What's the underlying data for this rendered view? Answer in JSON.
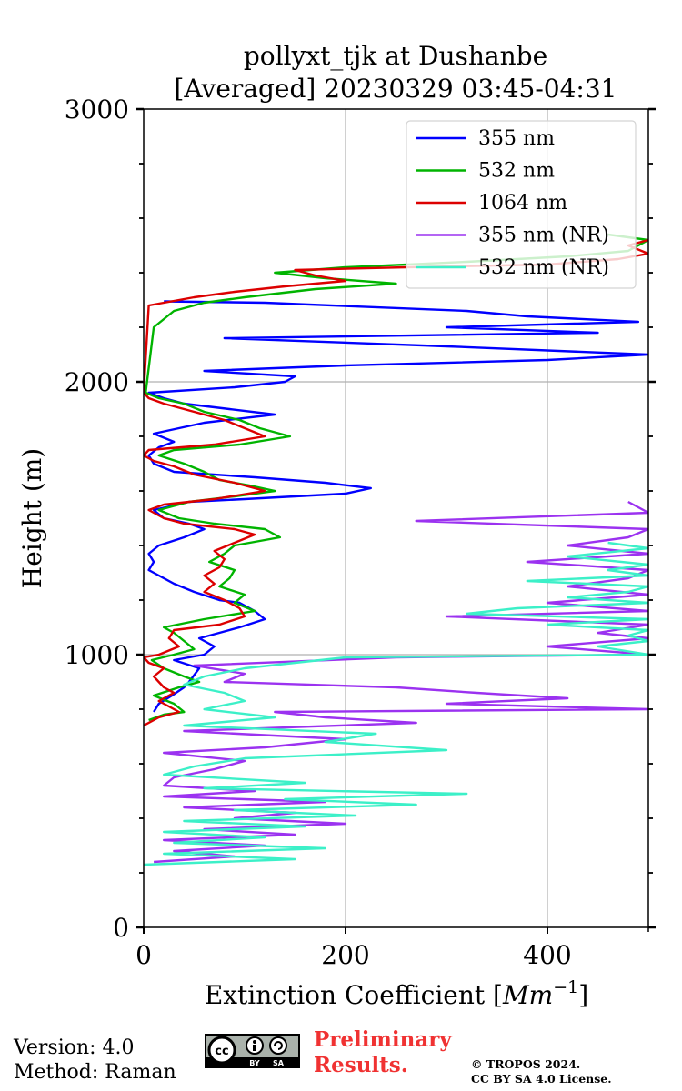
{
  "chart_data": {
    "type": "line",
    "title_line1": "pollyxt_tjk at Dushanbe",
    "title_line2": "[Averaged] 20230329 03:45-04:31",
    "xlabel": "Extinction Coefficient [",
    "xlabel_unit": "Mm",
    "xlabel_exp": "−1",
    "xlabel_close": "]",
    "ylabel": "Height (m)",
    "xlim": [
      0,
      500
    ],
    "ylim": [
      0,
      3000
    ],
    "x_ticks": [
      0,
      200,
      400
    ],
    "y_ticks": [
      0,
      1000,
      2000,
      3000
    ],
    "grid": true,
    "legend_position": "upper right",
    "series": [
      {
        "name": "355 nm",
        "color": "#0000ff",
        "points": [
          [
            10,
            790
          ],
          [
            15,
            820
          ],
          [
            28,
            850
          ],
          [
            40,
            880
          ],
          [
            45,
            900
          ],
          [
            55,
            950
          ],
          [
            30,
            980
          ],
          [
            60,
            1000
          ],
          [
            70,
            1030
          ],
          [
            55,
            1060
          ],
          [
            75,
            1080
          ],
          [
            95,
            1100
          ],
          [
            120,
            1130
          ],
          [
            110,
            1160
          ],
          [
            95,
            1190
          ],
          [
            75,
            1200
          ],
          [
            50,
            1230
          ],
          [
            30,
            1260
          ],
          [
            15,
            1290
          ],
          [
            5,
            1310
          ],
          [
            10,
            1340
          ],
          [
            5,
            1370
          ],
          [
            15,
            1400
          ],
          [
            40,
            1430
          ],
          [
            60,
            1460
          ],
          [
            45,
            1480
          ],
          [
            20,
            1500
          ],
          [
            10,
            1530
          ],
          [
            45,
            1560
          ],
          [
            100,
            1570
          ],
          [
            200,
            1590
          ],
          [
            225,
            1610
          ],
          [
            180,
            1630
          ],
          [
            110,
            1650
          ],
          [
            30,
            1670
          ],
          [
            10,
            1700
          ],
          [
            5,
            1730
          ],
          [
            15,
            1760
          ],
          [
            30,
            1780
          ],
          [
            10,
            1810
          ],
          [
            60,
            1850
          ],
          [
            130,
            1880
          ],
          [
            85,
            1900
          ],
          [
            40,
            1920
          ],
          [
            20,
            1940
          ],
          [
            5,
            1960
          ],
          [
            90,
            1980
          ],
          [
            140,
            2000
          ],
          [
            150,
            2020
          ],
          [
            60,
            2040
          ],
          [
            200,
            2060
          ],
          [
            400,
            2080
          ],
          [
            500,
            2100
          ],
          [
            300,
            2130
          ],
          [
            80,
            2160
          ],
          [
            450,
            2180
          ],
          [
            300,
            2200
          ],
          [
            490,
            2220
          ],
          [
            380,
            2240
          ],
          [
            320,
            2260
          ],
          [
            120,
            2290
          ],
          [
            20,
            2295
          ]
        ]
      },
      {
        "name": "532 nm",
        "color": "#00b400",
        "points": [
          [
            5,
            760
          ],
          [
            20,
            780
          ],
          [
            40,
            790
          ],
          [
            30,
            820
          ],
          [
            10,
            850
          ],
          [
            35,
            880
          ],
          [
            55,
            900
          ],
          [
            40,
            920
          ],
          [
            20,
            950
          ],
          [
            8,
            980
          ],
          [
            30,
            1000
          ],
          [
            50,
            1020
          ],
          [
            40,
            1050
          ],
          [
            30,
            1080
          ],
          [
            20,
            1100
          ],
          [
            60,
            1130
          ],
          [
            110,
            1160
          ],
          [
            90,
            1190
          ],
          [
            100,
            1220
          ],
          [
            75,
            1250
          ],
          [
            85,
            1280
          ],
          [
            90,
            1310
          ],
          [
            65,
            1340
          ],
          [
            80,
            1370
          ],
          [
            90,
            1400
          ],
          [
            135,
            1430
          ],
          [
            120,
            1460
          ],
          [
            70,
            1480
          ],
          [
            35,
            1500
          ],
          [
            15,
            1530
          ],
          [
            45,
            1560
          ],
          [
            90,
            1580
          ],
          [
            130,
            1600
          ],
          [
            105,
            1620
          ],
          [
            75,
            1640
          ],
          [
            60,
            1670
          ],
          [
            40,
            1700
          ],
          [
            15,
            1730
          ],
          [
            30,
            1750
          ],
          [
            95,
            1770
          ],
          [
            145,
            1800
          ],
          [
            115,
            1830
          ],
          [
            95,
            1860
          ],
          [
            60,
            1890
          ],
          [
            40,
            1920
          ],
          [
            15,
            1940
          ],
          [
            2,
            1960
          ],
          [
            10,
            2200
          ],
          [
            30,
            2260
          ],
          [
            60,
            2290
          ],
          [
            100,
            2310
          ],
          [
            170,
            2340
          ],
          [
            250,
            2360
          ],
          [
            180,
            2380
          ],
          [
            130,
            2400
          ],
          [
            200,
            2420
          ],
          [
            320,
            2440
          ],
          [
            420,
            2460
          ],
          [
            480,
            2480
          ],
          [
            500,
            2520
          ],
          [
            460,
            2540
          ]
        ]
      },
      {
        "name": "1064 nm",
        "color": "#dc0000",
        "points": [
          [
            0,
            740
          ],
          [
            15,
            770
          ],
          [
            35,
            790
          ],
          [
            25,
            810
          ],
          [
            15,
            830
          ],
          [
            30,
            860
          ],
          [
            20,
            880
          ],
          [
            10,
            920
          ],
          [
            20,
            950
          ],
          [
            5,
            970
          ],
          [
            0,
            990
          ],
          [
            15,
            1000
          ],
          [
            35,
            1030
          ],
          [
            25,
            1060
          ],
          [
            30,
            1090
          ],
          [
            75,
            1110
          ],
          [
            100,
            1140
          ],
          [
            95,
            1170
          ],
          [
            80,
            1200
          ],
          [
            60,
            1230
          ],
          [
            70,
            1260
          ],
          [
            60,
            1290
          ],
          [
            75,
            1320
          ],
          [
            80,
            1350
          ],
          [
            70,
            1380
          ],
          [
            90,
            1410
          ],
          [
            110,
            1440
          ],
          [
            90,
            1460
          ],
          [
            40,
            1480
          ],
          [
            20,
            1500
          ],
          [
            5,
            1530
          ],
          [
            20,
            1550
          ],
          [
            70,
            1570
          ],
          [
            120,
            1600
          ],
          [
            90,
            1630
          ],
          [
            50,
            1660
          ],
          [
            30,
            1690
          ],
          [
            10,
            1710
          ],
          [
            0,
            1730
          ],
          [
            5,
            1750
          ],
          [
            70,
            1770
          ],
          [
            120,
            1800
          ],
          [
            100,
            1830
          ],
          [
            80,
            1860
          ],
          [
            50,
            1890
          ],
          [
            20,
            1920
          ],
          [
            5,
            1940
          ],
          [
            0,
            1960
          ],
          [
            5,
            2280
          ],
          [
            20,
            2290
          ],
          [
            50,
            2310
          ],
          [
            90,
            2330
          ],
          [
            140,
            2350
          ],
          [
            200,
            2370
          ],
          [
            170,
            2390
          ],
          [
            150,
            2410
          ],
          [
            260,
            2420
          ],
          [
            400,
            2430
          ],
          [
            470,
            2450
          ],
          [
            500,
            2470
          ],
          [
            480,
            2500
          ],
          [
            500,
            2520
          ]
        ]
      },
      {
        "name": "355 nm (NR)",
        "color": "#9b32f0",
        "points": [
          [
            10,
            240
          ],
          [
            90,
            260
          ],
          [
            30,
            280
          ],
          [
            120,
            300
          ],
          [
            20,
            320
          ],
          [
            150,
            340
          ],
          [
            60,
            360
          ],
          [
            200,
            380
          ],
          [
            90,
            400
          ],
          [
            150,
            420
          ],
          [
            40,
            440
          ],
          [
            180,
            460
          ],
          [
            20,
            480
          ],
          [
            110,
            500
          ],
          [
            20,
            520
          ],
          [
            30,
            550
          ],
          [
            70,
            580
          ],
          [
            100,
            610
          ],
          [
            20,
            640
          ],
          [
            120,
            660
          ],
          [
            200,
            690
          ],
          [
            40,
            720
          ],
          [
            270,
            750
          ],
          [
            180,
            770
          ],
          [
            130,
            790
          ],
          [
            500,
            800
          ],
          [
            300,
            820
          ],
          [
            420,
            840
          ],
          [
            330,
            860
          ],
          [
            250,
            880
          ],
          [
            80,
            900
          ],
          [
            100,
            930
          ],
          [
            50,
            960
          ],
          [
            250,
            990
          ],
          [
            500,
            1000
          ],
          [
            400,
            1030
          ],
          [
            500,
            1060
          ],
          [
            450,
            1080
          ],
          [
            500,
            1110
          ],
          [
            300,
            1140
          ],
          [
            500,
            1160
          ],
          [
            400,
            1190
          ],
          [
            500,
            1220
          ],
          [
            420,
            1250
          ],
          [
            480,
            1280
          ],
          [
            500,
            1310
          ],
          [
            380,
            1340
          ],
          [
            500,
            1370
          ],
          [
            420,
            1400
          ],
          [
            480,
            1430
          ],
          [
            500,
            1460
          ],
          [
            270,
            1490
          ],
          [
            500,
            1520
          ],
          [
            480,
            1560
          ]
        ]
      },
      {
        "name": "532 nm (NR)",
        "color": "#3cf0c8",
        "points": [
          [
            0,
            230
          ],
          [
            150,
            250
          ],
          [
            20,
            270
          ],
          [
            180,
            290
          ],
          [
            30,
            310
          ],
          [
            120,
            330
          ],
          [
            20,
            350
          ],
          [
            160,
            370
          ],
          [
            40,
            390
          ],
          [
            210,
            410
          ],
          [
            90,
            430
          ],
          [
            270,
            450
          ],
          [
            140,
            470
          ],
          [
            320,
            490
          ],
          [
            60,
            510
          ],
          [
            160,
            530
          ],
          [
            20,
            560
          ],
          [
            50,
            590
          ],
          [
            100,
            620
          ],
          [
            300,
            650
          ],
          [
            180,
            680
          ],
          [
            230,
            710
          ],
          [
            40,
            740
          ],
          [
            130,
            770
          ],
          [
            60,
            800
          ],
          [
            100,
            830
          ],
          [
            80,
            860
          ],
          [
            40,
            890
          ],
          [
            60,
            920
          ],
          [
            100,
            950
          ],
          [
            200,
            990
          ],
          [
            500,
            1000
          ],
          [
            450,
            1030
          ],
          [
            500,
            1050
          ],
          [
            480,
            1070
          ],
          [
            500,
            1090
          ],
          [
            400,
            1110
          ],
          [
            500,
            1130
          ],
          [
            320,
            1150
          ],
          [
            370,
            1170
          ],
          [
            500,
            1190
          ],
          [
            420,
            1210
          ],
          [
            480,
            1230
          ],
          [
            500,
            1250
          ],
          [
            380,
            1270
          ],
          [
            500,
            1290
          ],
          [
            460,
            1310
          ],
          [
            500,
            1330
          ],
          [
            420,
            1360
          ],
          [
            500,
            1390
          ],
          [
            460,
            1410
          ]
        ]
      }
    ]
  },
  "footer": {
    "version": "Version: 4.0",
    "method": "Method: Raman",
    "preliminary_line1": "Preliminary",
    "preliminary_line2": "Results.",
    "copyright_line1": "© TROPOS 2024.",
    "copyright_line2": "CC BY SA 4.0 License.",
    "license_badge": {
      "icon": "cc-by-sa-icon",
      "text_cc": "cc",
      "text_by": "BY",
      "text_sa": "SA"
    }
  }
}
